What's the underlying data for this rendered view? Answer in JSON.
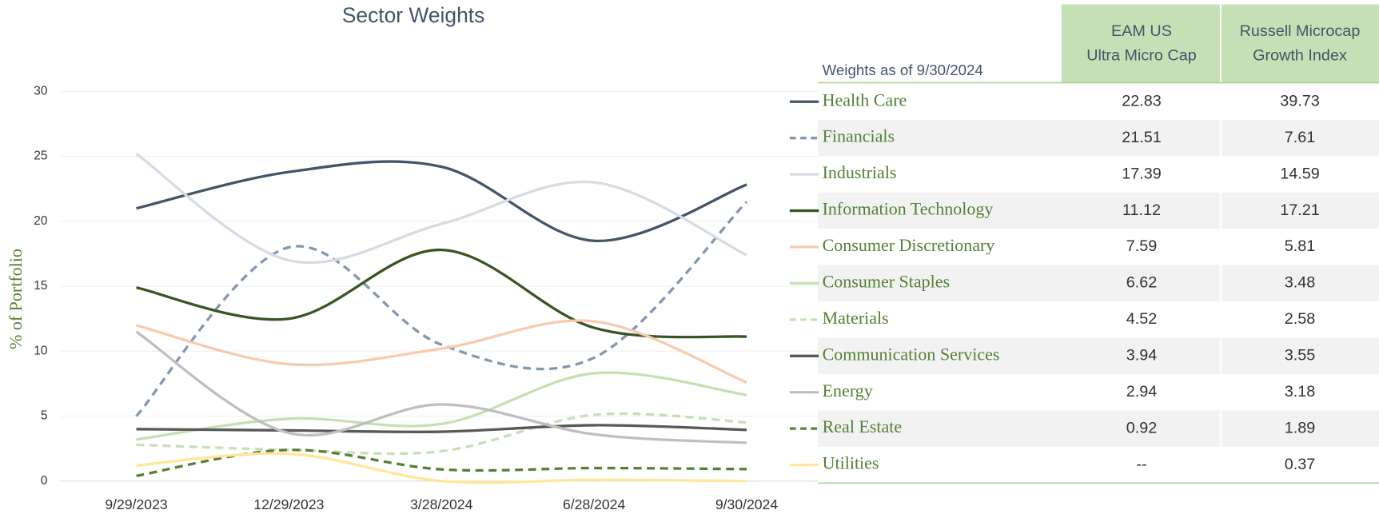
{
  "chart_data": {
    "type": "line",
    "title": "Sector Weights",
    "y_label": "% of Portfolio",
    "categories": [
      "9/29/2023",
      "12/29/2023",
      "3/28/2024",
      "6/28/2024",
      "9/30/2024"
    ],
    "ylim": [
      0,
      30
    ],
    "yticks": [
      0,
      5,
      10,
      15,
      20,
      25,
      30
    ],
    "grid": true,
    "smooth": true,
    "series": [
      {
        "name": "Health Care",
        "color": "#44546a",
        "dashed": false,
        "values": [
          21,
          23.8,
          24.2,
          18.5,
          22.83
        ]
      },
      {
        "name": "Financials",
        "color": "#8497b0",
        "dashed": true,
        "values": [
          5,
          18,
          10.5,
          9.5,
          21.51
        ]
      },
      {
        "name": "Industrials",
        "color": "#d6dce4",
        "dashed": false,
        "values": [
          25.2,
          17,
          19.8,
          23,
          17.39
        ]
      },
      {
        "name": "Information Technology",
        "color": "#375623",
        "dashed": false,
        "values": [
          14.9,
          12.5,
          17.8,
          11.8,
          11.12
        ]
      },
      {
        "name": "Consumer Discretionary",
        "color": "#f8cbad",
        "dashed": false,
        "values": [
          12,
          9,
          10.2,
          12.3,
          7.59
        ]
      },
      {
        "name": "Consumer Staples",
        "color": "#c5e0b4",
        "dashed": false,
        "values": [
          3.2,
          4.8,
          4.4,
          8.3,
          6.62
        ]
      },
      {
        "name": "Materials",
        "color": "#c5e0b4",
        "dashed": true,
        "values": [
          2.8,
          2.4,
          2.3,
          5.1,
          4.52
        ]
      },
      {
        "name": "Communication Services",
        "color": "#595959",
        "dashed": false,
        "values": [
          4,
          3.9,
          3.8,
          4.3,
          3.94
        ]
      },
      {
        "name": "Energy",
        "color": "#bfbfbf",
        "dashed": false,
        "values": [
          11.5,
          3.7,
          5.9,
          3.6,
          2.94
        ]
      },
      {
        "name": "Real Estate",
        "color": "#548235",
        "dashed": true,
        "values": [
          0.4,
          2.4,
          0.9,
          1,
          0.92
        ]
      },
      {
        "name": "Utilities",
        "color": "#ffe699",
        "dashed": false,
        "values": [
          1.2,
          2.1,
          0,
          0.1,
          0
        ]
      }
    ]
  },
  "table": {
    "caption": "Weights as of 9/30/2024",
    "columns": [
      [
        "EAM US",
        "Ultra Micro Cap"
      ],
      [
        "Russell Microcap",
        "Growth Index"
      ]
    ],
    "rows": [
      [
        22.83,
        39.73
      ],
      [
        21.51,
        7.61
      ],
      [
        17.39,
        14.59
      ],
      [
        11.12,
        17.21
      ],
      [
        7.59,
        5.81
      ],
      [
        6.62,
        3.48
      ],
      [
        4.52,
        2.58
      ],
      [
        3.94,
        3.55
      ],
      [
        2.94,
        3.18
      ],
      [
        0.92,
        1.89
      ],
      [
        "--",
        0.37
      ]
    ]
  }
}
